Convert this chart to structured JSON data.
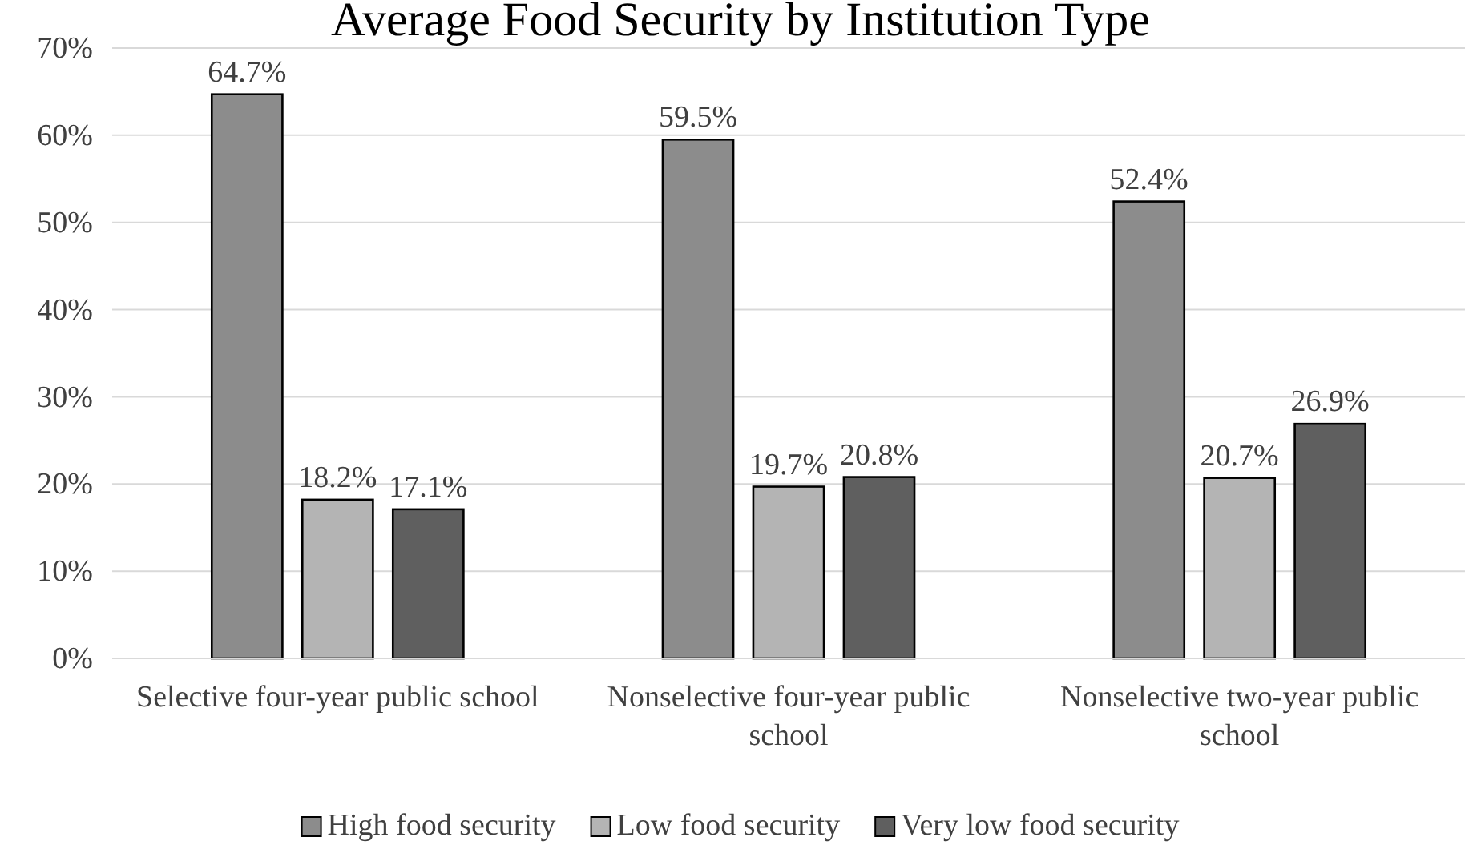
{
  "chart_data": {
    "type": "bar",
    "title": "Average Food Security by Institution Type",
    "categories": [
      "Selective four-year public school",
      "Nonselective four-year public school",
      "Nonselective two-year public school"
    ],
    "series": [
      {
        "name": "High food security",
        "color": "#8c8c8c",
        "values": [
          64.7,
          59.5,
          52.4
        ],
        "value_labels": [
          "64.7%",
          "59.5%",
          "52.4%"
        ]
      },
      {
        "name": "Low food security",
        "color": "#b4b4b4",
        "values": [
          18.2,
          19.7,
          20.7
        ],
        "value_labels": [
          "18.2%",
          "19.7%",
          "20.7%"
        ]
      },
      {
        "name": "Very low food security",
        "color": "#5f5f5f",
        "values": [
          17.1,
          20.8,
          26.9
        ],
        "value_labels": [
          "17.1%",
          "20.8%",
          "26.9%"
        ]
      }
    ],
    "ylim": [
      0,
      70
    ],
    "yticks": [
      {
        "value": 0,
        "label": "0%"
      },
      {
        "value": 10,
        "label": "10%"
      },
      {
        "value": 20,
        "label": "20%"
      },
      {
        "value": 30,
        "label": "30%"
      },
      {
        "value": 40,
        "label": "40%"
      },
      {
        "value": 50,
        "label": "50%"
      },
      {
        "value": 60,
        "label": "60%"
      },
      {
        "value": 70,
        "label": "70%"
      }
    ],
    "grid": "y",
    "legend": "bottom"
  }
}
